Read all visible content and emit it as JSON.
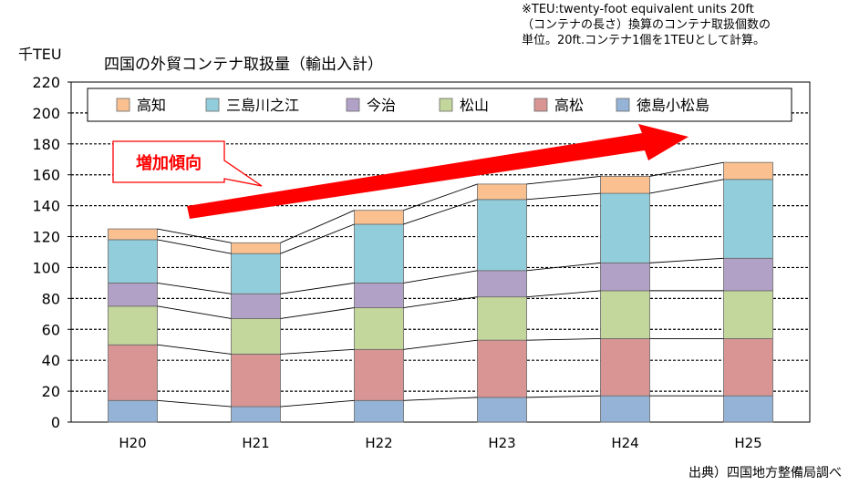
{
  "note": "※TEU:twenty-foot equivalent units 20ft\n（コンテナの長さ）換算のコンテナ取扱個数の\n単位。20ft.コンテナ1個を1TEUとして計算。",
  "source": "出典）四国地方整備局調べ",
  "chart_data": {
    "type": "bar",
    "stacked": true,
    "title": "四国の外貿コンテナ取扱量（輸出入計）",
    "ylabel": "千TEU",
    "xlabel": "",
    "ylim": [
      0,
      220
    ],
    "yticks": [
      0,
      20,
      40,
      60,
      80,
      100,
      120,
      140,
      160,
      180,
      200,
      220
    ],
    "grid": true,
    "legend_position": "top",
    "categories": [
      "H20",
      "H21",
      "H22",
      "H23",
      "H24",
      "H25"
    ],
    "series": [
      {
        "name": "徳島小松島",
        "color": "#95B3D7",
        "values": [
          14,
          10,
          14,
          16,
          17,
          17
        ]
      },
      {
        "name": "高松",
        "color": "#D99594",
        "values": [
          36,
          34,
          33,
          37,
          37,
          37
        ]
      },
      {
        "name": "松山",
        "color": "#C3D69B",
        "values": [
          25,
          23,
          27,
          28,
          31,
          31
        ]
      },
      {
        "name": "今治",
        "color": "#B2A1C7",
        "values": [
          15,
          16,
          16,
          17,
          18,
          21
        ]
      },
      {
        "name": "三島川之江",
        "color": "#92CDDC",
        "values": [
          28,
          26,
          38,
          46,
          45,
          51
        ]
      },
      {
        "name": "高知",
        "color": "#FAC090",
        "values": [
          7,
          7,
          9,
          10,
          11,
          11
        ]
      }
    ],
    "legend_order": [
      "高知",
      "三島川之江",
      "今治",
      "松山",
      "高松",
      "徳島小松島"
    ],
    "annotation": "増加傾向"
  }
}
